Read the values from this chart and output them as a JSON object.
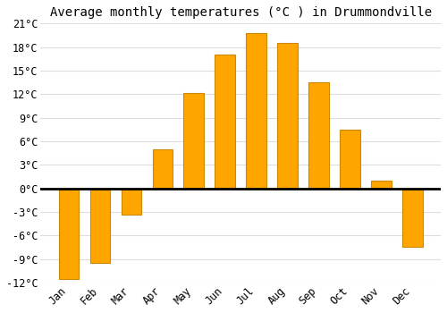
{
  "title": "Average monthly temperatures (°C ) in Drummondville",
  "months": [
    "Jan",
    "Feb",
    "Mar",
    "Apr",
    "May",
    "Jun",
    "Jul",
    "Aug",
    "Sep",
    "Oct",
    "Nov",
    "Dec"
  ],
  "temperatures": [
    -11.5,
    -9.5,
    -3.3,
    5.0,
    12.2,
    17.0,
    19.8,
    18.5,
    13.5,
    7.5,
    1.0,
    -7.5
  ],
  "bar_color": "#FFA500",
  "bar_edge_color": "#CC8800",
  "ylim": [
    -12,
    21
  ],
  "yticks": [
    -12,
    -9,
    -6,
    -3,
    0,
    3,
    6,
    9,
    12,
    15,
    18,
    21
  ],
  "ytick_labels": [
    "-12°C",
    "-9°C",
    "-6°C",
    "-3°C",
    "0°C",
    "3°C",
    "6°C",
    "9°C",
    "12°C",
    "15°C",
    "18°C",
    "21°C"
  ],
  "grid_color": "#dddddd",
  "background_color": "#ffffff",
  "title_fontsize": 10,
  "tick_fontsize": 8.5,
  "bar_width": 0.65
}
